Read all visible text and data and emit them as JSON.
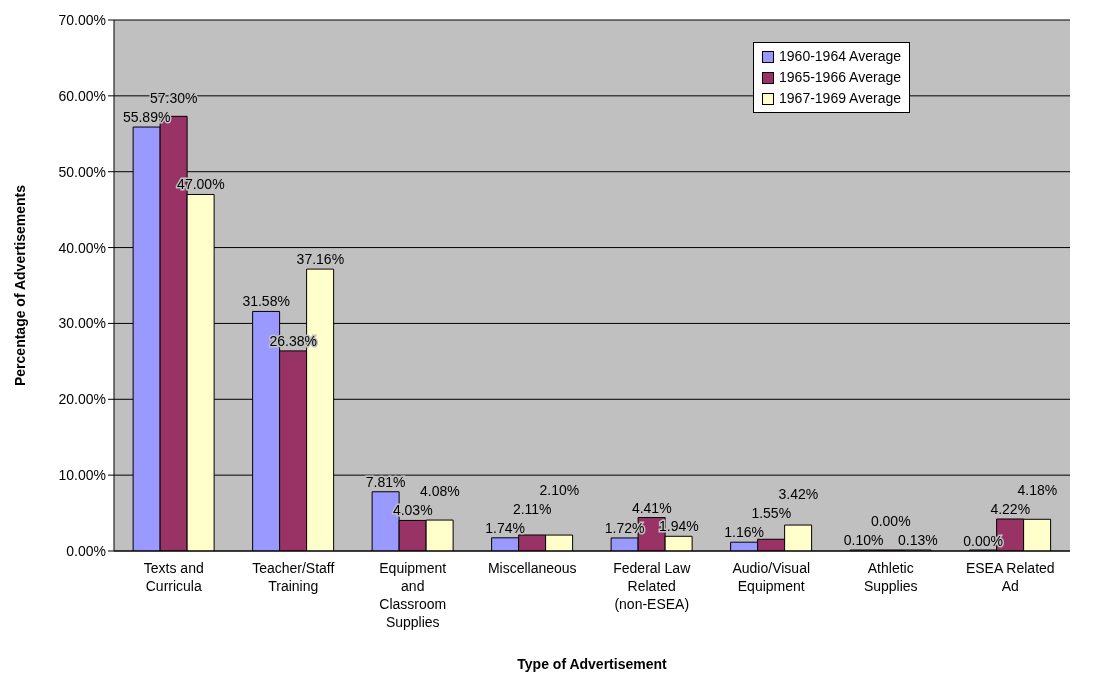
{
  "chart_data": {
    "type": "bar",
    "xlabel": "Type of Advertisement",
    "ylabel": "Percentage of Advertisements",
    "categories": [
      "Texts and Curricula",
      "Teacher/Staff Training",
      "Equipment and Classroom Supplies",
      "Miscellaneous",
      "Federal Law Related (non-ESEA)",
      "Audio/Visual Equipment",
      "Athletic Supplies",
      "ESEA Related Ad"
    ],
    "series": [
      {
        "name": "1960-1964 Average",
        "color": "#9999ff",
        "values": [
          55.89,
          31.58,
          7.81,
          1.74,
          1.72,
          1.16,
          0.1,
          0.0
        ],
        "value_labels": [
          "55.89%",
          "31.58%",
          "7.81%",
          "1.74%",
          "1.72%",
          "1.16%",
          "0.10%",
          "0.00%"
        ]
      },
      {
        "name": "1965-1966 Average",
        "color": "#993366",
        "values": [
          57.3,
          26.38,
          4.03,
          2.11,
          4.41,
          1.55,
          0.0,
          4.22
        ],
        "value_labels": [
          "57.30%",
          "26.38%",
          "4.03%",
          "2.11%",
          "4.41%",
          "1.55%",
          "0.00%",
          "4.22%"
        ]
      },
      {
        "name": "1967-1969 Average",
        "color": "#ffffcc",
        "values": [
          47.0,
          37.16,
          4.08,
          2.1,
          1.94,
          3.42,
          0.13,
          4.18
        ],
        "value_labels": [
          "47.00%",
          "37.16%",
          "4.08%",
          "2.10%",
          "1.94%",
          "3.42%",
          "0.13%",
          "4.18%"
        ]
      }
    ],
    "ylim": [
      0,
      70
    ],
    "yticks": [
      {
        "value": 0,
        "label": "0.00%"
      },
      {
        "value": 10,
        "label": "10.00%"
      },
      {
        "value": 20,
        "label": "20.00%"
      },
      {
        "value": 30,
        "label": "30.00%"
      },
      {
        "value": 40,
        "label": "40.00%"
      },
      {
        "value": 50,
        "label": "50.00%"
      },
      {
        "value": 60,
        "label": "60.00%"
      },
      {
        "value": 70,
        "label": "70.00%"
      }
    ],
    "grid": "y",
    "legend": "top right"
  }
}
